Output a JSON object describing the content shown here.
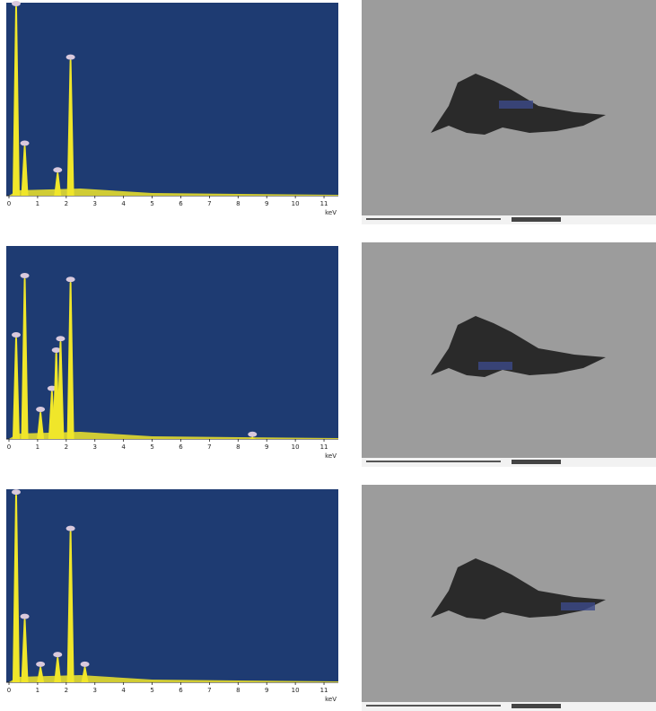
{
  "chart_data": [
    {
      "type": "line",
      "x_label": "keV",
      "x": [
        0.25,
        0.55,
        1.7,
        2.15
      ],
      "values": [
        100,
        27,
        13,
        72
      ],
      "xlim": [
        0,
        11.5
      ],
      "xticks": [
        0,
        1,
        2,
        3,
        4,
        5,
        6,
        7,
        8,
        9,
        10,
        11
      ],
      "ylim": [
        0,
        100
      ],
      "color": "#f0e62a",
      "background": "#1e3b72"
    },
    {
      "type": "line",
      "x_label": "keV",
      "x": [
        0.25,
        0.55,
        1.1,
        1.5,
        1.65,
        1.8,
        2.15,
        8.5
      ],
      "values": [
        54,
        85,
        15,
        26,
        46,
        52,
        83,
        2
      ],
      "xlim": [
        0,
        11.5
      ],
      "xticks": [
        0,
        1,
        2,
        3,
        4,
        5,
        6,
        7,
        8,
        9,
        10,
        11
      ],
      "ylim": [
        0,
        100
      ],
      "color": "#f0e62a",
      "background": "#1e3b72"
    },
    {
      "type": "line",
      "x_label": "keV",
      "x": [
        0.25,
        0.55,
        1.1,
        1.7,
        2.15,
        2.65
      ],
      "values": [
        99,
        34,
        9,
        14,
        80,
        9
      ],
      "xlim": [
        0,
        11.5
      ],
      "xticks": [
        0,
        1,
        2,
        3,
        4,
        5,
        6,
        7,
        8,
        9,
        10,
        11
      ],
      "ylim": [
        0,
        100
      ],
      "color": "#f0e62a",
      "background": "#1e3b72"
    }
  ]
}
